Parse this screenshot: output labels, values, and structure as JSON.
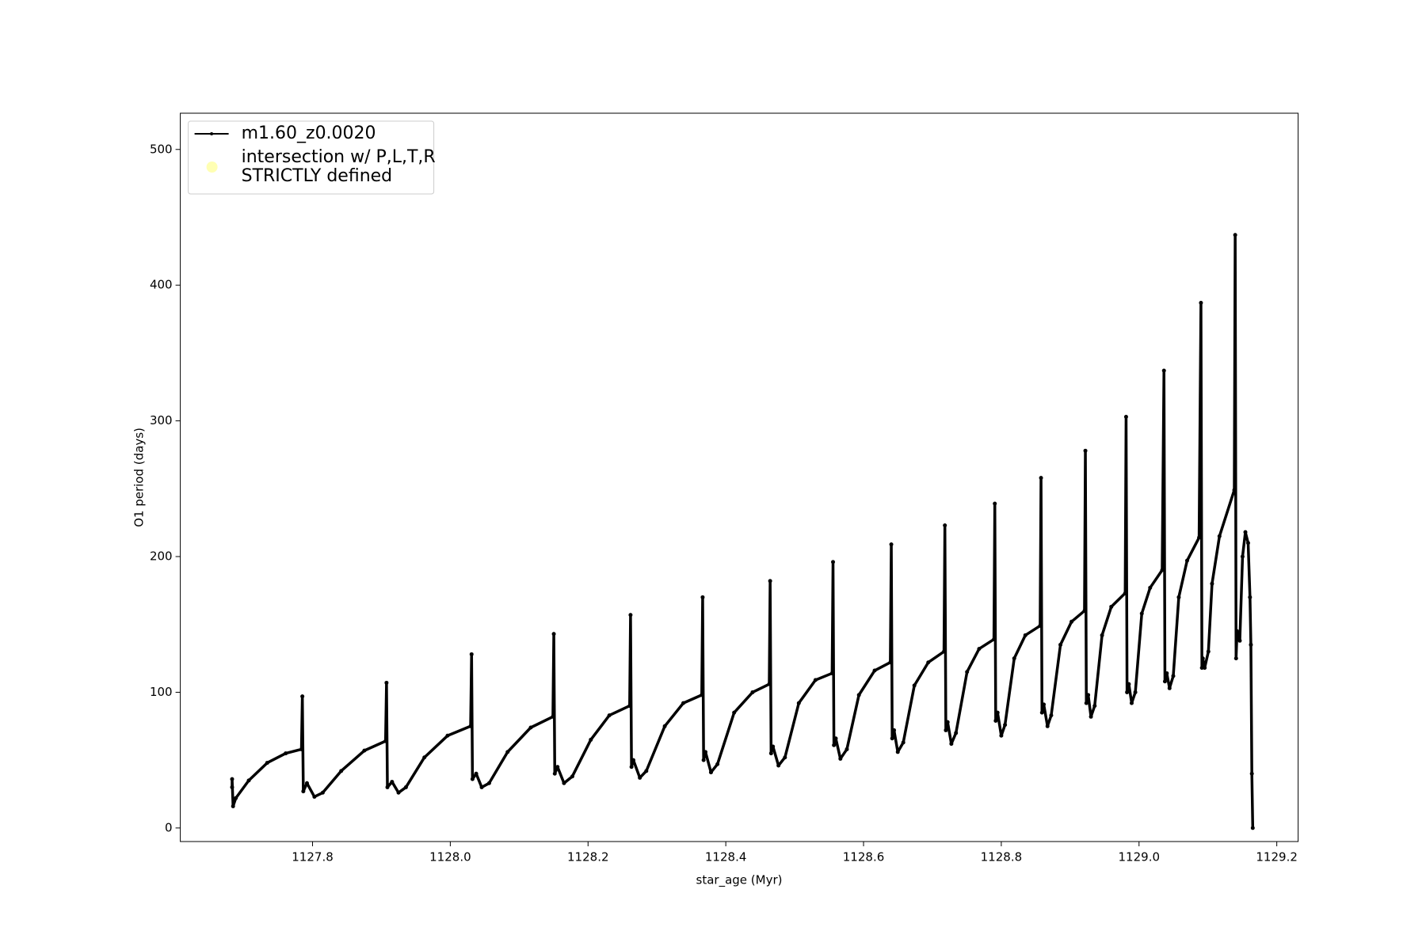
{
  "chart_data": {
    "type": "line",
    "xlabel": "star_age (Myr)",
    "ylabel": "O1 period (days)",
    "xlim": [
      1127.608,
      1129.231
    ],
    "ylim": [
      -10,
      526.7
    ],
    "xticks": [
      1127.8,
      {
        "value": 1128,
        "label": "1128.0"
      },
      1128.2,
      1128.4,
      1128.6,
      1128.8,
      {
        "value": 1129,
        "label": "1129.0"
      },
      1129.2
    ],
    "yticks": [
      0,
      100,
      200,
      300,
      400,
      500
    ],
    "legend": "upper left",
    "series": [
      {
        "name": "m1.60_z0.0020",
        "color": "#000000",
        "x": [
          1127.6832,
          1127.6832,
          1127.6846,
          1127.6886,
          1127.7074,
          1127.7342,
          1127.7611,
          1127.7839,
          1127.7852,
          1127.7866,
          1127.7919,
          1127.8027,
          1127.8148,
          1127.8416,
          1127.8752,
          1127.906,
          1127.9074,
          1127.9087,
          1127.9154,
          1127.9248,
          1127.9356,
          1127.9624,
          1127.996,
          1128.0295,
          1128.0309,
          1128.0322,
          1128.0376,
          1128.0456,
          1128.0564,
          1128.0832,
          1128.1168,
          1128.149,
          1128.1503,
          1128.1517,
          1128.1557,
          1128.1651,
          1128.1772,
          1128.204,
          1128.2309,
          1128.2604,
          1128.2617,
          1128.2631,
          1128.2658,
          1128.2752,
          1128.2846,
          1128.3114,
          1128.3383,
          1128.3651,
          1128.3664,
          1128.3678,
          1128.3705,
          1128.3785,
          1128.3879,
          1128.4121,
          1128.4389,
          1128.4631,
          1128.4644,
          1128.4658,
          1128.4685,
          1128.4765,
          1128.4859,
          1128.506,
          1128.5302,
          1128.5544,
          1128.5557,
          1128.557,
          1128.5597,
          1128.5664,
          1128.5758,
          1128.5933,
          1128.6161,
          1128.6389,
          1128.6403,
          1128.6416,
          1128.6443,
          1128.6497,
          1128.6577,
          1128.6738,
          1128.694,
          1128.7168,
          1128.7181,
          1128.7195,
          1128.7221,
          1128.7275,
          1128.7342,
          1128.7503,
          1128.7678,
          1128.7893,
          1128.7906,
          1128.7919,
          1128.7946,
          1128.8,
          1128.8054,
          1128.8188,
          1128.8349,
          1128.8564,
          1128.8577,
          1128.8591,
          1128.8617,
          1128.8671,
          1128.8725,
          1128.8859,
          1128.902,
          1128.9208,
          1128.9221,
          1128.9235,
          1128.9262,
          1128.9302,
          1128.9356,
          1128.9463,
          1128.9597,
          1128.9799,
          1128.9812,
          1128.9826,
          1128.9852,
          1128.9893,
          1128.9946,
          1129.004,
          1129.0161,
          1129.0336,
          1129.0362,
          1129.0376,
          1129.0403,
          1129.0443,
          1129.0497,
          1129.0577,
          1129.0698,
          1129.0872,
          1129.0899,
          1129.0913,
          1129.0926,
          1129.0953,
          1129.1007,
          1129.106,
          1129.1168,
          1129.1383,
          1129.1396,
          1129.1409,
          1129.1423,
          1129.1463,
          1129.1503,
          1129.1544,
          1129.1584,
          1129.1611,
          1129.1624,
          1129.1638,
          1129.1651
        ],
        "values": [
          30,
          36,
          16,
          22,
          35,
          48,
          55,
          58,
          97,
          27,
          33,
          23,
          26,
          42,
          57,
          64,
          107,
          30,
          34,
          26,
          30,
          52,
          68,
          75,
          128,
          36,
          40,
          30,
          33,
          56,
          74,
          82,
          143,
          40,
          45,
          33,
          38,
          65,
          83,
          90,
          157,
          45,
          50,
          37,
          42,
          75,
          92,
          98,
          170,
          50,
          56,
          41,
          47,
          85,
          100,
          106,
          182,
          55,
          60,
          46,
          52,
          92,
          109,
          114,
          196,
          61,
          66,
          51,
          58,
          98,
          116,
          122,
          209,
          66,
          72,
          56,
          63,
          105,
          122,
          130,
          223,
          72,
          78,
          62,
          70,
          115,
          132,
          139,
          239,
          79,
          85,
          68,
          76,
          125,
          142,
          149,
          258,
          85,
          91,
          75,
          83,
          135,
          152,
          160,
          278,
          92,
          98,
          82,
          90,
          142,
          163,
          173,
          303,
          100,
          106,
          92,
          100,
          158,
          177,
          190,
          337,
          108,
          114,
          103,
          112,
          170,
          197,
          214,
          387,
          118,
          125,
          118,
          130,
          180,
          215,
          249,
          437,
          125,
          145,
          138,
          200,
          218,
          210,
          170,
          135,
          40,
          0
        ]
      },
      {
        "name": "intersection w/ P,L,T,R\nSTRICTLY defined",
        "color": "#ffffb3",
        "type": "scatter",
        "x": [],
        "values": []
      }
    ]
  }
}
